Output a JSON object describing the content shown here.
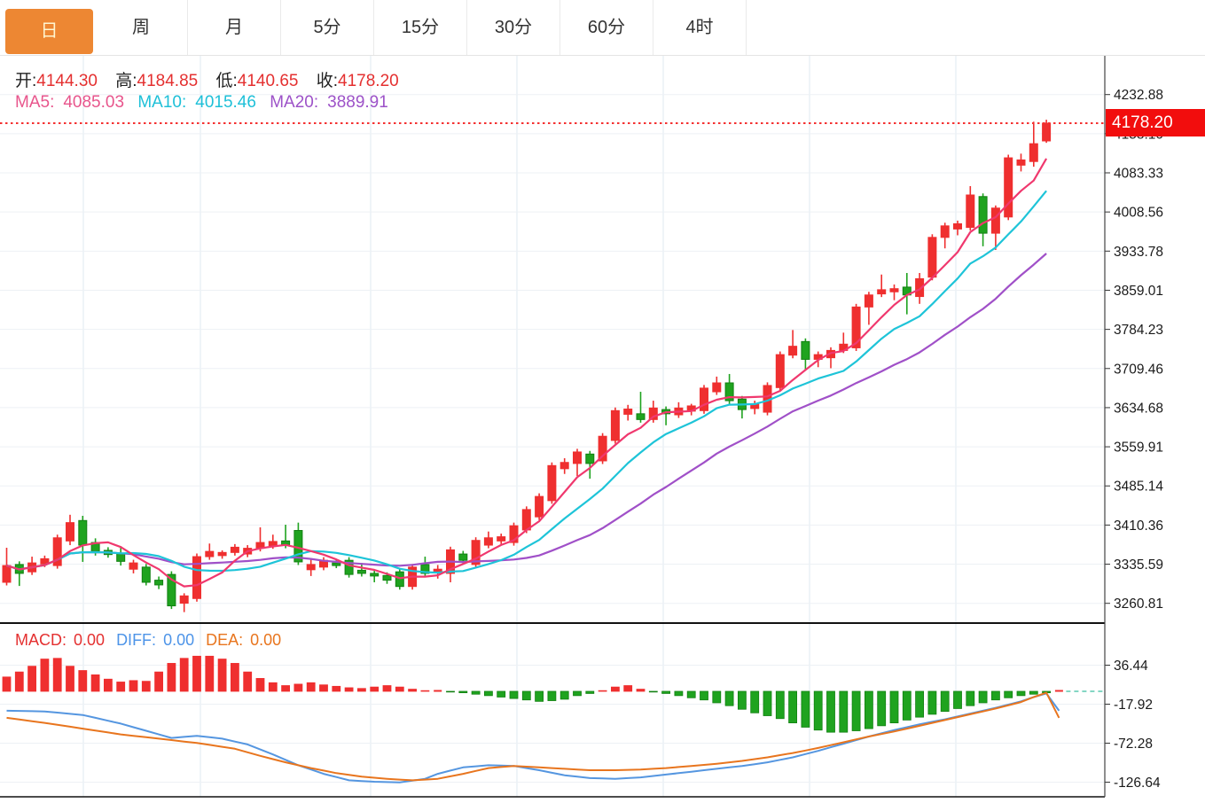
{
  "tab_bar": {
    "tabs": [
      {
        "label": "日",
        "active": true
      },
      {
        "label": "周",
        "active": false
      },
      {
        "label": "月",
        "active": false
      },
      {
        "label": "5分",
        "active": false
      },
      {
        "label": "15分",
        "active": false
      },
      {
        "label": "30分",
        "active": false
      },
      {
        "label": "60分",
        "active": false
      },
      {
        "label": "4时",
        "active": false
      }
    ]
  },
  "ohlc_bar": {
    "open_label": "开:",
    "open_value": "4144.30",
    "high_label": "高:",
    "high_value": "4184.85",
    "low_label": "低:",
    "low_value": "4140.65",
    "close_label": "收:",
    "close_value": "4178.20"
  },
  "ma_bar": {
    "ma5_label": "MA5:",
    "ma5_value": "4085.03",
    "ma10_label": "MA10:",
    "ma10_value": "4015.46",
    "ma20_label": "MA20:",
    "ma20_value": "3889.91"
  },
  "macd_bar": {
    "macd_label": "MACD:",
    "macd_value": "0.00",
    "diff_label": "DIFF:",
    "diff_value": "0.00",
    "dea_label": "DEA:",
    "dea_value": "0.00"
  },
  "price_axis": {
    "ticks": [
      "4232.88",
      "4158.10",
      "4083.33",
      "4008.56",
      "3933.78",
      "3859.01",
      "3784.23",
      "3709.46",
      "3634.68",
      "3559.91",
      "3485.14",
      "3410.36",
      "3335.59",
      "3260.81"
    ],
    "current_price_label": "4178.20"
  },
  "macd_axis": {
    "ticks": [
      "36.44",
      "-17.92",
      "-72.28",
      "-126.64"
    ]
  },
  "colors": {
    "up": "#ef2f2f",
    "down": "#1fa31f",
    "down_stroke": "#128012",
    "ma5": "#f0386e",
    "ma10": "#1ec4d8",
    "ma20": "#a050c8",
    "diff": "#5596e0",
    "dea": "#e8751e",
    "tab_accent": "#ed8733",
    "price_flag_bg": "#f20d0d",
    "grid": "#edf1f5",
    "vgrid": "#dfe9f1",
    "axis_line": "#444444",
    "tick_text": "#1a1a1a",
    "current_line": "#f43030",
    "zero_dash": "#5bc8b0"
  },
  "chart_data": {
    "type": "candlestick",
    "title": "",
    "legend": [
      "MA5",
      "MA10",
      "MA20",
      "MACD",
      "DIFF",
      "DEA"
    ],
    "price_ticks": [
      4232.88,
      4158.1,
      4083.33,
      4008.56,
      3933.78,
      3859.01,
      3784.23,
      3709.46,
      3634.68,
      3559.91,
      3485.14,
      3410.36,
      3335.59,
      3260.81
    ],
    "price_range": [
      3260.81,
      4232.88
    ],
    "current_price": 4178.2,
    "latest_ohlc": {
      "open": 4144.3,
      "high": 4184.85,
      "low": 4140.65,
      "close": 4178.2
    },
    "ma_periods": [
      5,
      10,
      20
    ],
    "ma_latest": {
      "ma5": 4085.03,
      "ma10": 4015.46,
      "ma20": 3889.91
    },
    "candles_ohlc": [
      [
        3301,
        3367,
        3295,
        3333
      ],
      [
        3335,
        3341,
        3294,
        3318
      ],
      [
        3321,
        3350,
        3315,
        3338
      ],
      [
        3336,
        3352,
        3330,
        3346
      ],
      [
        3333,
        3392,
        3327,
        3386
      ],
      [
        3380,
        3430,
        3372,
        3415
      ],
      [
        3419,
        3428,
        3340,
        3372
      ],
      [
        3377,
        3385,
        3352,
        3360
      ],
      [
        3362,
        3368,
        3348,
        3354
      ],
      [
        3356,
        3370,
        3333,
        3341
      ],
      [
        3326,
        3344,
        3318,
        3338
      ],
      [
        3330,
        3336,
        3295,
        3301
      ],
      [
        3305,
        3312,
        3288,
        3296
      ],
      [
        3316,
        3322,
        3250,
        3256
      ],
      [
        3261,
        3280,
        3244,
        3275
      ],
      [
        3270,
        3356,
        3264,
        3350
      ],
      [
        3350,
        3375,
        3344,
        3360
      ],
      [
        3352,
        3362,
        3346,
        3358
      ],
      [
        3358,
        3374,
        3352,
        3368
      ],
      [
        3355,
        3372,
        3349,
        3366
      ],
      [
        3366,
        3406,
        3360,
        3377
      ],
      [
        3371,
        3392,
        3365,
        3379
      ],
      [
        3380,
        3411,
        3366,
        3372
      ],
      [
        3400,
        3415,
        3334,
        3340
      ],
      [
        3325,
        3347,
        3313,
        3335
      ],
      [
        3330,
        3349,
        3324,
        3343
      ],
      [
        3338,
        3346,
        3328,
        3333
      ],
      [
        3343,
        3349,
        3310,
        3316
      ],
      [
        3324,
        3338,
        3312,
        3318
      ],
      [
        3318,
        3324,
        3301,
        3313
      ],
      [
        3314,
        3320,
        3298,
        3305
      ],
      [
        3321,
        3327,
        3287,
        3293
      ],
      [
        3293,
        3336,
        3287,
        3330
      ],
      [
        3335,
        3350,
        3312,
        3318
      ],
      [
        3320,
        3334,
        3308,
        3326
      ],
      [
        3318,
        3369,
        3301,
        3363
      ],
      [
        3355,
        3361,
        3337,
        3343
      ],
      [
        3335,
        3387,
        3329,
        3381
      ],
      [
        3372,
        3398,
        3366,
        3386
      ],
      [
        3380,
        3394,
        3374,
        3388
      ],
      [
        3377,
        3415,
        3371,
        3409
      ],
      [
        3401,
        3446,
        3395,
        3440
      ],
      [
        3426,
        3471,
        3420,
        3465
      ],
      [
        3457,
        3530,
        3451,
        3524
      ],
      [
        3518,
        3538,
        3508,
        3530
      ],
      [
        3528,
        3556,
        3504,
        3550
      ],
      [
        3546,
        3552,
        3499,
        3528
      ],
      [
        3533,
        3586,
        3527,
        3580
      ],
      [
        3572,
        3635,
        3566,
        3629
      ],
      [
        3622,
        3640,
        3610,
        3632
      ],
      [
        3623,
        3665,
        3606,
        3612
      ],
      [
        3612,
        3648,
        3606,
        3634
      ],
      [
        3631,
        3637,
        3601,
        3623
      ],
      [
        3621,
        3645,
        3615,
        3634
      ],
      [
        3628,
        3642,
        3620,
        3638
      ],
      [
        3629,
        3678,
        3623,
        3672
      ],
      [
        3665,
        3694,
        3659,
        3682
      ],
      [
        3682,
        3699,
        3642,
        3648
      ],
      [
        3651,
        3657,
        3614,
        3631
      ],
      [
        3633,
        3648,
        3622,
        3642
      ],
      [
        3626,
        3683,
        3620,
        3677
      ],
      [
        3673,
        3742,
        3667,
        3736
      ],
      [
        3735,
        3783,
        3729,
        3752
      ],
      [
        3761,
        3767,
        3707,
        3727
      ],
      [
        3727,
        3742,
        3712,
        3736
      ],
      [
        3730,
        3750,
        3710,
        3744
      ],
      [
        3744,
        3778,
        3739,
        3756
      ],
      [
        3749,
        3833,
        3743,
        3827
      ],
      [
        3827,
        3856,
        3793,
        3850
      ],
      [
        3852,
        3889,
        3846,
        3860
      ],
      [
        3856,
        3870,
        3840,
        3862
      ],
      [
        3865,
        3892,
        3813,
        3850
      ],
      [
        3847,
        3892,
        3833,
        3881
      ],
      [
        3884,
        3966,
        3878,
        3960
      ],
      [
        3960,
        3988,
        3939,
        3982
      ],
      [
        3976,
        3992,
        3964,
        3986
      ],
      [
        3979,
        4058,
        3973,
        4041
      ],
      [
        4038,
        4044,
        3943,
        3968
      ],
      [
        3968,
        4021,
        3936,
        4016
      ],
      [
        3999,
        4118,
        3993,
        4112
      ],
      [
        4098,
        4120,
        4086,
        4108
      ],
      [
        4105,
        4181,
        4095,
        4139
      ],
      [
        4144.3,
        4184.85,
        4140.65,
        4178.2
      ]
    ],
    "macd": {
      "ticks": [
        36.44,
        -17.92,
        -72.28,
        -126.64
      ],
      "value_range": [
        -126.64,
        36.44
      ],
      "latest": {
        "macd": 0.0,
        "diff": 0.0,
        "dea": 0.0
      },
      "histogram": [
        20,
        27,
        35,
        45,
        46,
        35,
        29,
        23,
        17,
        13,
        15,
        14,
        27,
        39,
        46,
        49,
        49,
        45,
        39,
        27,
        18,
        12,
        8,
        10,
        12,
        9,
        7,
        5,
        4,
        6,
        8,
        6,
        3,
        1,
        0,
        -1,
        -2,
        -4,
        -6,
        -8,
        -10,
        -12,
        -14,
        -13,
        -11,
        -6,
        -3,
        1,
        6,
        8,
        3,
        -1,
        -3,
        -6,
        -9,
        -12,
        -16,
        -20,
        -25,
        -30,
        -34,
        -38,
        -44,
        -50,
        -54,
        -57,
        -57,
        -55,
        -52,
        -48,
        -44,
        -40,
        -36,
        -32,
        -28,
        -24,
        -20,
        -16,
        -12,
        -9,
        -6,
        -4,
        -2,
        0
      ],
      "diff_points": [
        [
          0,
          -27
        ],
        [
          3,
          -28
        ],
        [
          6,
          -33
        ],
        [
          9,
          -45
        ],
        [
          12,
          -60
        ],
        [
          13,
          -65
        ],
        [
          15,
          -62
        ],
        [
          17,
          -66
        ],
        [
          19,
          -74
        ],
        [
          21,
          -88
        ],
        [
          23,
          -103
        ],
        [
          25,
          -115
        ],
        [
          27,
          -124
        ],
        [
          29,
          -126
        ],
        [
          31,
          -127
        ],
        [
          33,
          -122
        ],
        [
          34,
          -115
        ],
        [
          36,
          -106
        ],
        [
          38,
          -103
        ],
        [
          40,
          -104
        ],
        [
          42,
          -110
        ],
        [
          44,
          -117
        ],
        [
          46,
          -121
        ],
        [
          48,
          -122
        ],
        [
          50,
          -120
        ],
        [
          52,
          -116
        ],
        [
          54,
          -112
        ],
        [
          56,
          -108
        ],
        [
          58,
          -104
        ],
        [
          60,
          -99
        ],
        [
          62,
          -92
        ],
        [
          64,
          -83
        ],
        [
          66,
          -73
        ],
        [
          68,
          -63
        ],
        [
          70,
          -54
        ],
        [
          72,
          -46
        ],
        [
          74,
          -39
        ],
        [
          76,
          -31
        ],
        [
          78,
          -23
        ],
        [
          80,
          -14
        ],
        [
          81,
          -8
        ],
        [
          82,
          -3
        ]
      ],
      "dea_points": [
        [
          0,
          -37
        ],
        [
          3,
          -44
        ],
        [
          6,
          -52
        ],
        [
          9,
          -60
        ],
        [
          12,
          -66
        ],
        [
          15,
          -72
        ],
        [
          18,
          -80
        ],
        [
          20,
          -90
        ],
        [
          22,
          -99
        ],
        [
          24,
          -107
        ],
        [
          26,
          -114
        ],
        [
          28,
          -119
        ],
        [
          30,
          -122
        ],
        [
          32,
          -124
        ],
        [
          34,
          -122
        ],
        [
          36,
          -115
        ],
        [
          38,
          -107
        ],
        [
          40,
          -104
        ],
        [
          42,
          -106
        ],
        [
          44,
          -108
        ],
        [
          46,
          -110
        ],
        [
          48,
          -110
        ],
        [
          50,
          -109
        ],
        [
          52,
          -107
        ],
        [
          54,
          -104
        ],
        [
          56,
          -101
        ],
        [
          58,
          -97
        ],
        [
          60,
          -92
        ],
        [
          62,
          -86
        ],
        [
          64,
          -79
        ],
        [
          66,
          -71
        ],
        [
          68,
          -63
        ],
        [
          70,
          -56
        ],
        [
          72,
          -48
        ],
        [
          74,
          -40
        ],
        [
          76,
          -32
        ],
        [
          78,
          -24
        ],
        [
          80,
          -15
        ],
        [
          81,
          -8
        ],
        [
          82,
          -2
        ]
      ]
    }
  }
}
